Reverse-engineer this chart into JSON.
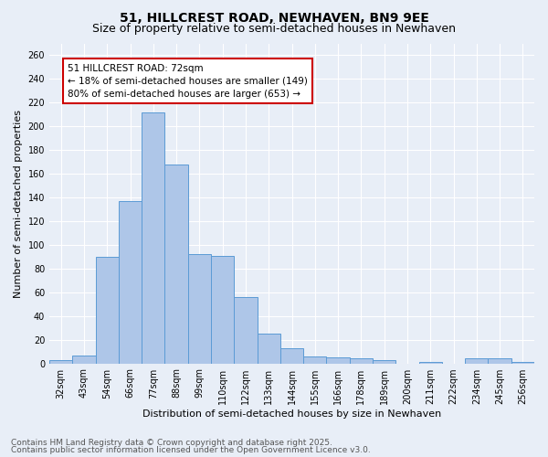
{
  "title": "51, HILLCREST ROAD, NEWHAVEN, BN9 9EE",
  "subtitle": "Size of property relative to semi-detached houses in Newhaven",
  "xlabel": "Distribution of semi-detached houses by size in Newhaven",
  "ylabel": "Number of semi-detached properties",
  "categories": [
    "32sqm",
    "43sqm",
    "54sqm",
    "66sqm",
    "77sqm",
    "88sqm",
    "99sqm",
    "110sqm",
    "122sqm",
    "133sqm",
    "144sqm",
    "155sqm",
    "166sqm",
    "178sqm",
    "189sqm",
    "200sqm",
    "211sqm",
    "222sqm",
    "234sqm",
    "245sqm",
    "256sqm"
  ],
  "values": [
    3,
    7,
    90,
    137,
    212,
    168,
    92,
    91,
    56,
    25,
    13,
    6,
    5,
    4,
    3,
    0,
    1,
    0,
    4,
    4,
    1
  ],
  "bar_color": "#aec6e8",
  "bar_edge_color": "#5b9bd5",
  "annotation_text_line1": "51 HILLCREST ROAD: 72sqm",
  "annotation_text_line2": "← 18% of semi-detached houses are smaller (149)",
  "annotation_text_line3": "80% of semi-detached houses are larger (653) →",
  "annotation_box_color": "#ffffff",
  "annotation_border_color": "#cc0000",
  "ylim": [
    0,
    270
  ],
  "yticks": [
    0,
    20,
    40,
    60,
    80,
    100,
    120,
    140,
    160,
    180,
    200,
    220,
    240,
    260
  ],
  "background_color": "#e8eef7",
  "grid_color": "#ffffff",
  "footer_line1": "Contains HM Land Registry data © Crown copyright and database right 2025.",
  "footer_line2": "Contains public sector information licensed under the Open Government Licence v3.0.",
  "title_fontsize": 10,
  "subtitle_fontsize": 9,
  "axis_label_fontsize": 8,
  "tick_fontsize": 7,
  "annotation_fontsize": 7.5,
  "footer_fontsize": 6.5
}
